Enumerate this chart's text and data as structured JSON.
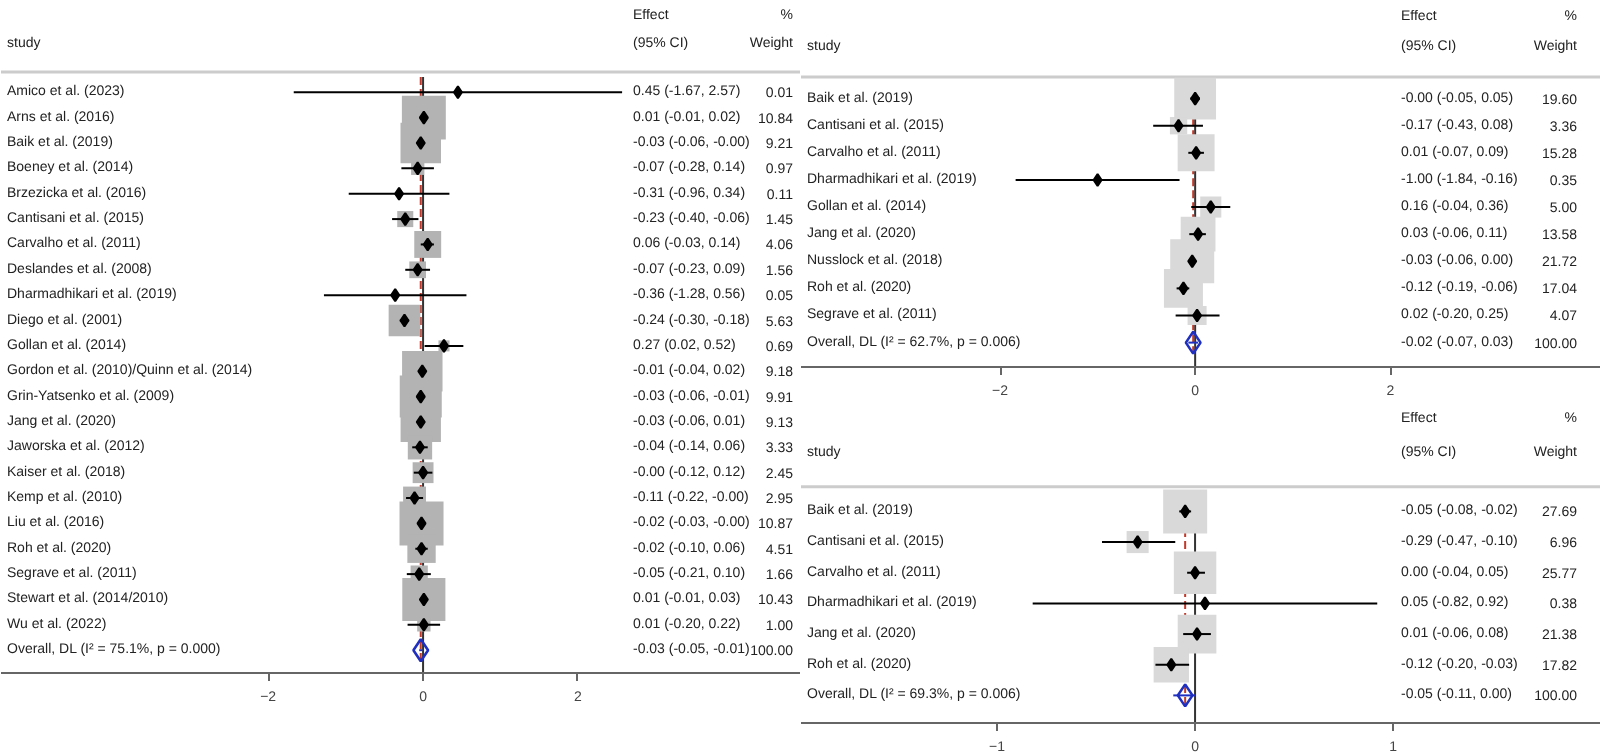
{
  "chart_data": [
    {
      "type": "scatter",
      "orientation": "horizontal",
      "ylabel": "study",
      "xlim": [
        -5.45,
        4.88
      ],
      "xticks": [
        -2,
        0,
        2
      ],
      "grid": false,
      "annotations": [
        "Effect",
        "(95% CI)",
        "%",
        "Weight",
        "0.45 (-1.67, 2.57)",
        "0.01",
        "0.01 (-0.01, 0.02)",
        "10.84",
        "-0.03 (-0.06, -0.00)",
        "9.21",
        "-0.07 (-0.28, 0.14)",
        "0.97",
        "-0.31 (-0.96, 0.34)",
        "0.11",
        "-0.23 (-0.40, -0.06)",
        "1.45",
        "0.06 (-0.03, 0.14)",
        "4.06",
        "-0.07 (-0.23, 0.09)",
        "1.56",
        "-0.36 (-1.28, 0.56)",
        "0.05",
        "-0.24 (-0.30, -0.18)",
        "5.63",
        "0.27 (0.02, 0.52)",
        "0.69",
        "-0.01 (-0.04, 0.02)",
        "9.18",
        "-0.03 (-0.06, -0.01)",
        "9.91",
        "-0.03 (-0.06, 0.01)",
        "9.13",
        "-0.04 (-0.14, 0.06)",
        "3.33",
        "-0.00 (-0.12, 0.12)",
        "2.45",
        "-0.11 (-0.22, -0.00)",
        "2.95",
        "-0.02 (-0.03, -0.00)",
        "10.87",
        "-0.02 (-0.10, 0.06)",
        "4.51",
        "-0.05 (-0.21, 0.10)",
        "1.66",
        "0.01 (-0.01, 0.03)",
        "10.43",
        "0.01 (-0.20, 0.22)",
        "1.00",
        "-0.03 (-0.05, -0.01)",
        "100.00"
      ],
      "categories": [
        "Amico et al. (2023)",
        "Arns et al. (2016)",
        "Baik et al. (2019)",
        "Boeney et al. (2014)",
        "Brzezicka et al. (2016)",
        "Cantisani et al. (2015)",
        "Carvalho et al. (2011)",
        "Deslandes et al. (2008)",
        "Dharmadhikari et al. (2019)",
        "Diego et al. (2001)",
        "Gollan et al. (2014)",
        "Gordon et al. (2010)/Quinn et al. (2014)",
        "Grin-Yatsenko et al. (2009)",
        "Jang et al. (2020)",
        "Jaworska et al. (2012)",
        "Kaiser et al. (2018)",
        "Kemp et al. (2010)",
        "Liu et al. (2016)",
        "Roh et al. (2020)",
        "Segrave et al. (2011)",
        "Stewart et al. (2014/2010)",
        "Wu et al. (2022)",
        "Overall, DL (I² = 75.1%, p = 0.000)"
      ],
      "ref_lines": [
        {
          "axis": "x",
          "value": 0,
          "color": "#333333",
          "line_style": "solid"
        },
        {
          "axis": "x",
          "value": -0.03,
          "color": "#c0392b",
          "line_style": "dashed"
        }
      ],
      "series": [
        {
          "type": "bubble",
          "marker": "square",
          "color": "#b3b3b3",
          "values": [
            0.45,
            0.01,
            -0.03,
            -0.07,
            -0.31,
            -0.23,
            0.06,
            -0.07,
            -0.36,
            -0.24,
            0.27,
            -0.01,
            -0.03,
            -0.03,
            -0.04,
            0,
            -0.11,
            -0.02,
            -0.02,
            -0.05,
            0.01,
            0.01,
            null
          ],
          "errors": [
            [
              -1.67,
              2.57
            ],
            [
              -0.01,
              0.02
            ],
            [
              -0.06,
              0
            ],
            [
              -0.28,
              0.14
            ],
            [
              -0.96,
              0.34
            ],
            [
              -0.4,
              -0.06
            ],
            [
              -0.03,
              0.14
            ],
            [
              -0.23,
              0.09
            ],
            [
              -1.28,
              0.56
            ],
            [
              -0.3,
              -0.18
            ],
            [
              0.02,
              0.52
            ],
            [
              -0.04,
              0.02
            ],
            [
              -0.06,
              -0.01
            ],
            [
              -0.06,
              0.01
            ],
            [
              -0.14,
              0.06
            ],
            [
              -0.12,
              0.12
            ],
            [
              -0.22,
              0
            ],
            [
              -0.03,
              0
            ],
            [
              -0.1,
              0.06
            ],
            [
              -0.21,
              0.1
            ],
            [
              -0.01,
              0.03
            ],
            [
              -0.2,
              0.22
            ],
            null
          ],
          "sizes": [
            0.001,
            0.997,
            0.847,
            0.089,
            0.01,
            0.133,
            0.374,
            0.144,
            0.005,
            0.518,
            0.063,
            0.845,
            0.912,
            0.84,
            0.306,
            0.225,
            0.271,
            1,
            0.415,
            0.153,
            0.96,
            0.092,
            null
          ]
        },
        {
          "marker": "diamond",
          "color": "#1f2fbf",
          "values": [
            null,
            null,
            null,
            null,
            null,
            null,
            null,
            null,
            null,
            null,
            null,
            null,
            null,
            null,
            null,
            null,
            null,
            null,
            null,
            null,
            null,
            null,
            -0.03
          ],
          "errors": [
            null,
            null,
            null,
            null,
            null,
            null,
            null,
            null,
            null,
            null,
            null,
            null,
            null,
            null,
            null,
            null,
            null,
            null,
            null,
            null,
            null,
            null,
            [
              -0.05,
              -0.01
            ]
          ]
        }
      ]
    },
    {
      "type": "scatter",
      "orientation": "horizontal",
      "ylabel": "study",
      "xlim": [
        -4.04,
        4.16
      ],
      "xticks": [
        -2,
        0,
        2
      ],
      "grid": false,
      "annotations": [
        "Effect",
        "(95% CI)",
        "%",
        "Weight",
        "-0.00 (-0.05, 0.05)",
        "19.60",
        "-0.17 (-0.43, 0.08)",
        "3.36",
        "0.01 (-0.07, 0.09)",
        "15.28",
        "-1.00 (-1.84, -0.16)",
        "0.35",
        "0.16 (-0.04, 0.36)",
        "5.00",
        "0.03 (-0.06, 0.11)",
        "13.58",
        "-0.03 (-0.06, 0.00)",
        "21.72",
        "-0.12 (-0.19, -0.06)",
        "17.04",
        "0.02 (-0.20, 0.25)",
        "4.07",
        "-0.02 (-0.07, 0.03)",
        "100.00"
      ],
      "categories": [
        "Baik et al. (2019)",
        "Cantisani et al. (2015)",
        "Carvalho et al. (2011)",
        "Dharmadhikari et al. (2019)",
        "Gollan et al. (2014)",
        "Jang et al. (2020)",
        "Nusslock et al. (2018)",
        "Roh et al. (2020)",
        "Segrave et al. (2011)",
        "Overall, DL (I² = 62.7%, p = 0.006)"
      ],
      "ref_lines": [
        {
          "axis": "x",
          "value": 0,
          "color": "#333333",
          "line_style": "solid"
        },
        {
          "axis": "x",
          "value": -0.02,
          "color": "#c0392b",
          "line_style": "dashed"
        }
      ],
      "series": [
        {
          "type": "bubble",
          "marker": "square",
          "color": "#d9d9d9",
          "values": [
            0,
            -0.17,
            0.01,
            -1.0,
            0.16,
            0.03,
            -0.03,
            -0.12,
            0.02,
            null
          ],
          "errors": [
            [
              -0.05,
              0.05
            ],
            [
              -0.43,
              0.08
            ],
            [
              -0.07,
              0.09
            ],
            [
              -1.84,
              -0.16
            ],
            [
              -0.04,
              0.36
            ],
            [
              -0.06,
              0.11
            ],
            [
              -0.06,
              0
            ],
            [
              -0.19,
              -0.06
            ],
            [
              -0.2,
              0.25
            ],
            null
          ],
          "sizes": [
            0.902,
            0.155,
            0.704,
            0.016,
            0.23,
            0.625,
            1,
            0.785,
            0.187,
            null
          ]
        },
        {
          "marker": "diamond",
          "color": "#1f2fbf",
          "values": [
            null,
            null,
            null,
            null,
            null,
            null,
            null,
            null,
            null,
            -0.02
          ],
          "errors": [
            null,
            null,
            null,
            null,
            null,
            null,
            null,
            null,
            null,
            [
              -0.07,
              0.03
            ]
          ]
        }
      ]
    },
    {
      "type": "scatter",
      "orientation": "horizontal",
      "ylabel": "study",
      "xlim": [
        -1.99,
        2.05
      ],
      "xticks": [
        -1,
        0,
        1
      ],
      "grid": false,
      "annotations": [
        "Effect",
        "(95% CI)",
        "%",
        "Weight",
        "-0.05 (-0.08, -0.02)",
        "27.69",
        "-0.29 (-0.47, -0.10)",
        "6.96",
        "0.00 (-0.04, 0.05)",
        "25.77",
        "0.05 (-0.82, 0.92)",
        "0.38",
        "0.01 (-0.06, 0.08)",
        "21.38",
        "-0.12 (-0.20, -0.03)",
        "17.82",
        "-0.05 (-0.11, 0.00)",
        "100.00"
      ],
      "categories": [
        "Baik et al. (2019)",
        "Cantisani et al. (2015)",
        "Carvalho et al. (2011)",
        "Dharmadhikari et al. (2019)",
        "Jang et al. (2020)",
        "Roh et al. (2020)",
        "Overall, DL (I² = 69.3%, p = 0.006)"
      ],
      "ref_lines": [
        {
          "axis": "x",
          "value": 0,
          "color": "#333333",
          "line_style": "solid"
        },
        {
          "axis": "x",
          "value": -0.05,
          "color": "#c0392b",
          "line_style": "dashed"
        }
      ],
      "series": [
        {
          "type": "bubble",
          "marker": "square",
          "color": "#d9d9d9",
          "values": [
            -0.05,
            -0.29,
            0,
            0.05,
            0.01,
            -0.12,
            null
          ],
          "errors": [
            [
              -0.08,
              -0.02
            ],
            [
              -0.47,
              -0.1
            ],
            [
              -0.04,
              0.05
            ],
            [
              -0.82,
              0.92
            ],
            [
              -0.06,
              0.08
            ],
            [
              -0.2,
              -0.03
            ],
            null
          ],
          "sizes": [
            1,
            0.251,
            0.931,
            0.014,
            0.772,
            0.644,
            null
          ]
        },
        {
          "marker": "diamond",
          "color": "#1f2fbf",
          "values": [
            null,
            null,
            null,
            null,
            null,
            null,
            -0.05
          ],
          "errors": [
            null,
            null,
            null,
            null,
            null,
            null,
            [
              -0.11,
              0.0
            ]
          ]
        }
      ]
    }
  ]
}
